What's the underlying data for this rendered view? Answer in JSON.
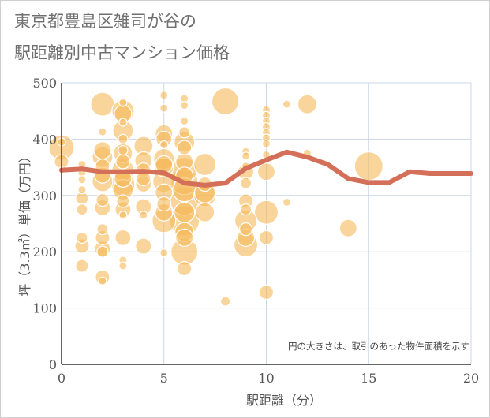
{
  "title_line1": "東京都豊島区雑司が谷の",
  "title_line2": "駅距離別中古マンション価格",
  "chart_data": {
    "type": "scatter",
    "title": "東京都豊島区雑司が谷の 駅距離別中古マンション価格",
    "xlabel": "駅距離（分）",
    "ylabel": "坪（3.3㎡）単価（万円）",
    "xlim": [
      0,
      20
    ],
    "ylim": [
      0,
      500
    ],
    "xticks": [
      0,
      5,
      10,
      15,
      20
    ],
    "yticks": [
      0,
      100,
      200,
      300,
      400,
      500
    ],
    "note": "円の大きさは、取引のあった物件面積を示す",
    "colors": {
      "bubble": "#f5b95a",
      "trend": "#d4705a",
      "grid": "#c9d7e8"
    },
    "trend_line": {
      "x": [
        0,
        1,
        2,
        3,
        4,
        5,
        6,
        7,
        8,
        9,
        10,
        11,
        12,
        13,
        14,
        15,
        16,
        17,
        18,
        19,
        20
      ],
      "y": [
        345,
        347,
        342,
        342,
        343,
        340,
        322,
        318,
        322,
        348,
        363,
        377,
        368,
        355,
        330,
        323,
        323,
        342,
        339,
        339,
        339
      ]
    },
    "points": [
      {
        "x": 0,
        "y": 385,
        "s": 16
      },
      {
        "x": 0,
        "y": 360,
        "s": 9
      },
      {
        "x": 0,
        "y": 345,
        "s": 4
      },
      {
        "x": 0,
        "y": 395,
        "s": 5
      },
      {
        "x": 1,
        "y": 355,
        "s": 5
      },
      {
        "x": 1,
        "y": 340,
        "s": 5
      },
      {
        "x": 1,
        "y": 328,
        "s": 5
      },
      {
        "x": 1,
        "y": 310,
        "s": 5
      },
      {
        "x": 1,
        "y": 295,
        "s": 8
      },
      {
        "x": 1,
        "y": 275,
        "s": 7
      },
      {
        "x": 1,
        "y": 225,
        "s": 7
      },
      {
        "x": 1,
        "y": 210,
        "s": 9
      },
      {
        "x": 1,
        "y": 175,
        "s": 8
      },
      {
        "x": 2,
        "y": 462,
        "s": 15
      },
      {
        "x": 2,
        "y": 413,
        "s": 5
      },
      {
        "x": 2,
        "y": 380,
        "s": 11
      },
      {
        "x": 2,
        "y": 368,
        "s": 13
      },
      {
        "x": 2,
        "y": 352,
        "s": 9
      },
      {
        "x": 2,
        "y": 336,
        "s": 10
      },
      {
        "x": 2,
        "y": 325,
        "s": 13
      },
      {
        "x": 2,
        "y": 292,
        "s": 8
      },
      {
        "x": 2,
        "y": 278,
        "s": 10
      },
      {
        "x": 2,
        "y": 240,
        "s": 7
      },
      {
        "x": 2,
        "y": 225,
        "s": 9
      },
      {
        "x": 2,
        "y": 205,
        "s": 10
      },
      {
        "x": 2,
        "y": 200,
        "s": 7
      },
      {
        "x": 2,
        "y": 155,
        "s": 9
      },
      {
        "x": 2,
        "y": 148,
        "s": 5
      },
      {
        "x": 3,
        "y": 465,
        "s": 5
      },
      {
        "x": 3,
        "y": 450,
        "s": 14
      },
      {
        "x": 3,
        "y": 445,
        "s": 11
      },
      {
        "x": 3,
        "y": 430,
        "s": 5
      },
      {
        "x": 3,
        "y": 415,
        "s": 13
      },
      {
        "x": 3,
        "y": 400,
        "s": 6
      },
      {
        "x": 3,
        "y": 380,
        "s": 6
      },
      {
        "x": 3,
        "y": 375,
        "s": 12
      },
      {
        "x": 3,
        "y": 360,
        "s": 9
      },
      {
        "x": 3,
        "y": 345,
        "s": 14
      },
      {
        "x": 3,
        "y": 330,
        "s": 11
      },
      {
        "x": 3,
        "y": 320,
        "s": 15
      },
      {
        "x": 3,
        "y": 310,
        "s": 13
      },
      {
        "x": 3,
        "y": 290,
        "s": 8
      },
      {
        "x": 3,
        "y": 275,
        "s": 10
      },
      {
        "x": 3,
        "y": 265,
        "s": 5
      },
      {
        "x": 3,
        "y": 225,
        "s": 10
      },
      {
        "x": 3,
        "y": 185,
        "s": 5
      },
      {
        "x": 3,
        "y": 175,
        "s": 5
      },
      {
        "x": 4,
        "y": 388,
        "s": 12
      },
      {
        "x": 4,
        "y": 362,
        "s": 11
      },
      {
        "x": 4,
        "y": 345,
        "s": 9
      },
      {
        "x": 4,
        "y": 330,
        "s": 9
      },
      {
        "x": 4,
        "y": 320,
        "s": 10
      },
      {
        "x": 4,
        "y": 280,
        "s": 10
      },
      {
        "x": 4,
        "y": 265,
        "s": 5
      },
      {
        "x": 4,
        "y": 210,
        "s": 10
      },
      {
        "x": 5,
        "y": 478,
        "s": 5
      },
      {
        "x": 5,
        "y": 455,
        "s": 5
      },
      {
        "x": 5,
        "y": 410,
        "s": 11
      },
      {
        "x": 5,
        "y": 400,
        "s": 10
      },
      {
        "x": 5,
        "y": 390,
        "s": 5
      },
      {
        "x": 5,
        "y": 365,
        "s": 13
      },
      {
        "x": 5,
        "y": 355,
        "s": 11
      },
      {
        "x": 5,
        "y": 350,
        "s": 12
      },
      {
        "x": 5,
        "y": 325,
        "s": 14
      },
      {
        "x": 5,
        "y": 305,
        "s": 11
      },
      {
        "x": 5,
        "y": 285,
        "s": 9
      },
      {
        "x": 5,
        "y": 270,
        "s": 11
      },
      {
        "x": 5,
        "y": 255,
        "s": 15
      },
      {
        "x": 5,
        "y": 198,
        "s": 5
      },
      {
        "x": 6,
        "y": 472,
        "s": 5
      },
      {
        "x": 6,
        "y": 460,
        "s": 5
      },
      {
        "x": 6,
        "y": 432,
        "s": 5
      },
      {
        "x": 6,
        "y": 412,
        "s": 7
      },
      {
        "x": 6,
        "y": 395,
        "s": 13
      },
      {
        "x": 6,
        "y": 385,
        "s": 9
      },
      {
        "x": 6,
        "y": 360,
        "s": 11
      },
      {
        "x": 6,
        "y": 345,
        "s": 16
      },
      {
        "x": 6,
        "y": 335,
        "s": 11
      },
      {
        "x": 6,
        "y": 325,
        "s": 17
      },
      {
        "x": 6,
        "y": 310,
        "s": 15
      },
      {
        "x": 6,
        "y": 290,
        "s": 18
      },
      {
        "x": 6,
        "y": 270,
        "s": 13
      },
      {
        "x": 6,
        "y": 255,
        "s": 19
      },
      {
        "x": 6,
        "y": 235,
        "s": 12
      },
      {
        "x": 6,
        "y": 225,
        "s": 11
      },
      {
        "x": 6,
        "y": 200,
        "s": 17
      },
      {
        "x": 6,
        "y": 170,
        "s": 9
      },
      {
        "x": 7,
        "y": 355,
        "s": 14
      },
      {
        "x": 7,
        "y": 320,
        "s": 9
      },
      {
        "x": 7,
        "y": 305,
        "s": 13
      },
      {
        "x": 7,
        "y": 300,
        "s": 14
      },
      {
        "x": 7,
        "y": 270,
        "s": 12
      },
      {
        "x": 8,
        "y": 467,
        "s": 17
      },
      {
        "x": 8,
        "y": 112,
        "s": 6
      },
      {
        "x": 9,
        "y": 378,
        "s": 5
      },
      {
        "x": 9,
        "y": 370,
        "s": 5
      },
      {
        "x": 9,
        "y": 352,
        "s": 5
      },
      {
        "x": 9,
        "y": 342,
        "s": 10
      },
      {
        "x": 9,
        "y": 322,
        "s": 7
      },
      {
        "x": 9,
        "y": 290,
        "s": 9
      },
      {
        "x": 9,
        "y": 275,
        "s": 7
      },
      {
        "x": 9,
        "y": 255,
        "s": 14
      },
      {
        "x": 9,
        "y": 240,
        "s": 8
      },
      {
        "x": 9,
        "y": 225,
        "s": 11
      },
      {
        "x": 9,
        "y": 212,
        "s": 15
      },
      {
        "x": 10,
        "y": 452,
        "s": 5
      },
      {
        "x": 10,
        "y": 442,
        "s": 5
      },
      {
        "x": 10,
        "y": 432,
        "s": 5
      },
      {
        "x": 10,
        "y": 422,
        "s": 5
      },
      {
        "x": 10,
        "y": 412,
        "s": 5
      },
      {
        "x": 10,
        "y": 402,
        "s": 5
      },
      {
        "x": 10,
        "y": 392,
        "s": 5
      },
      {
        "x": 10,
        "y": 372,
        "s": 5
      },
      {
        "x": 10,
        "y": 342,
        "s": 11
      },
      {
        "x": 10,
        "y": 270,
        "s": 15
      },
      {
        "x": 10,
        "y": 225,
        "s": 9
      },
      {
        "x": 10,
        "y": 128,
        "s": 9
      },
      {
        "x": 11,
        "y": 462,
        "s": 5
      },
      {
        "x": 11,
        "y": 288,
        "s": 5
      },
      {
        "x": 12,
        "y": 462,
        "s": 12
      },
      {
        "x": 12,
        "y": 375,
        "s": 5
      },
      {
        "x": 14,
        "y": 242,
        "s": 11
      },
      {
        "x": 15,
        "y": 352,
        "s": 18
      }
    ]
  }
}
